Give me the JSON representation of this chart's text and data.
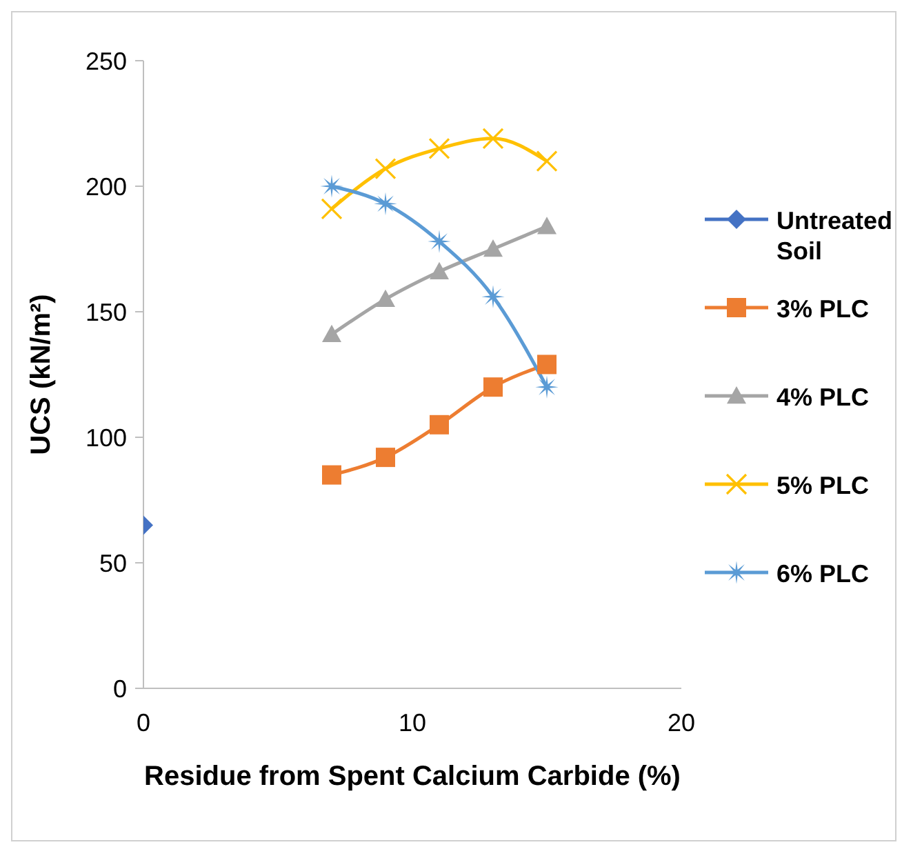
{
  "chart_data": {
    "type": "line",
    "xlabel": "Residue from Spent Calcium Carbide (%)",
    "ylabel": "UCS (kN/m²)",
    "xlim": [
      0,
      20
    ],
    "xticks": [
      0,
      10,
      20
    ],
    "ylim": [
      0,
      250
    ],
    "yticks": [
      0,
      50,
      100,
      150,
      200,
      250
    ],
    "grid": false,
    "legend": "right",
    "series": [
      {
        "name": "Untreated Soil",
        "color": "#4472c4",
        "marker": "diamond",
        "x": [
          0
        ],
        "values": [
          65
        ]
      },
      {
        "name": "3% PLC",
        "color": "#ed7d31",
        "marker": "square",
        "x": [
          7,
          9,
          11,
          13,
          15
        ],
        "values": [
          85,
          92,
          105,
          120,
          129
        ]
      },
      {
        "name": "4% PLC",
        "color": "#a5a5a5",
        "marker": "triangle",
        "x": [
          7,
          9,
          11,
          13,
          15
        ],
        "values": [
          141,
          155,
          166,
          175,
          184
        ]
      },
      {
        "name": "5% PLC",
        "color": "#ffc000",
        "marker": "cross",
        "x": [
          7,
          9,
          11,
          13,
          15
        ],
        "values": [
          191,
          207,
          215,
          219,
          210
        ]
      },
      {
        "name": "6% PLC",
        "color": "#5b9bd5",
        "marker": "star",
        "x": [
          7,
          9,
          11,
          13,
          15
        ],
        "values": [
          200,
          193,
          178,
          156,
          120
        ]
      }
    ]
  }
}
